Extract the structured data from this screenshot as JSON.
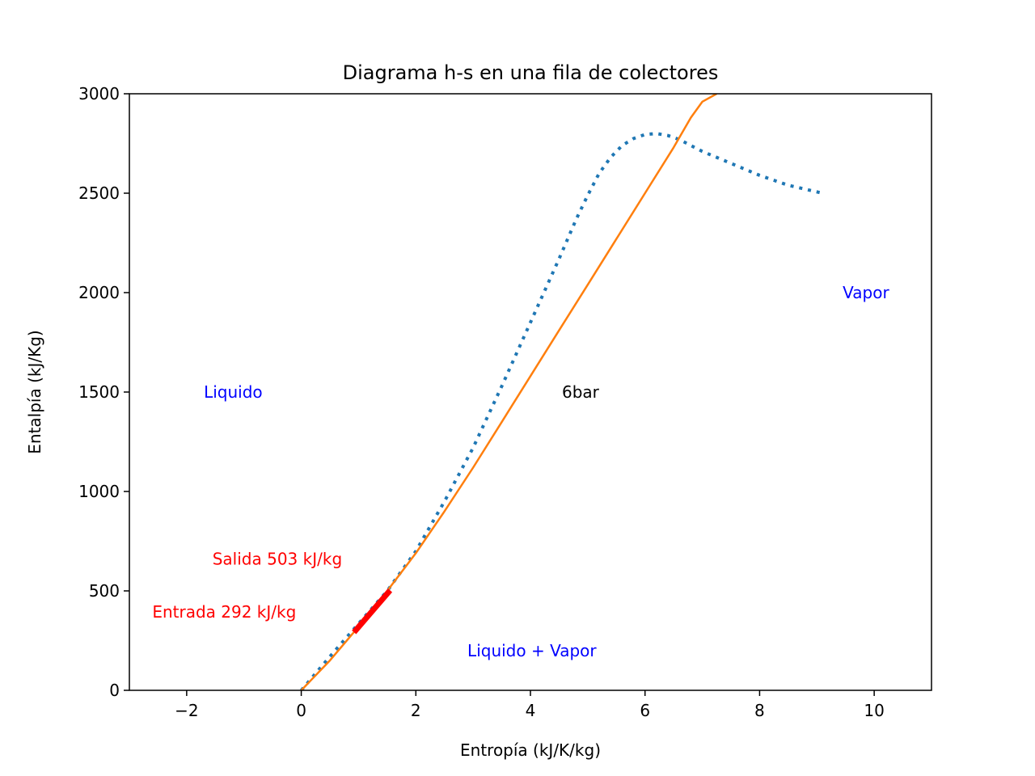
{
  "chart_data": {
    "type": "line",
    "title": "Diagrama h-s en una fila de colectores",
    "xlabel": "Entropía (kJ/K/kg)",
    "ylabel": "Entalpía (kJ/Kg)",
    "xlim": [
      -3,
      11
    ],
    "ylim": [
      0,
      3000
    ],
    "xticks": [
      -2,
      0,
      2,
      4,
      6,
      8,
      10
    ],
    "xtick_labels": [
      "−2",
      "0",
      "2",
      "4",
      "6",
      "8",
      "10"
    ],
    "yticks": [
      0,
      500,
      1000,
      1500,
      2000,
      2500,
      3000
    ],
    "ytick_labels": [
      "0",
      "500",
      "1000",
      "1500",
      "2000",
      "2500",
      "3000"
    ],
    "grid": false,
    "series": [
      {
        "style": "dotted",
        "color": "#1f77b4",
        "x": [
          0.0,
          0.5,
          1.0,
          1.5,
          2.0,
          2.5,
          3.0,
          3.5,
          4.0,
          4.5,
          4.8,
          5.0,
          5.2,
          5.4,
          5.6,
          5.8,
          6.0,
          6.2,
          6.4,
          6.6,
          6.8,
          7.0,
          7.5,
          8.0,
          8.5,
          9.1
        ],
        "y": [
          0,
          170,
          335,
          500,
          700,
          950,
          1220,
          1530,
          1850,
          2170,
          2370,
          2490,
          2600,
          2680,
          2740,
          2775,
          2795,
          2800,
          2790,
          2770,
          2740,
          2710,
          2650,
          2590,
          2540,
          2500
        ]
      },
      {
        "style": "solid",
        "color": "#ff7f0e",
        "x": [
          0.0,
          0.5,
          1.0,
          1.5,
          2.0,
          2.5,
          3.0,
          3.5,
          4.0,
          4.5,
          5.0,
          5.5,
          6.0,
          6.5,
          6.8,
          7.0,
          7.25
        ],
        "y": [
          0,
          150,
          320,
          500,
          690,
          900,
          1120,
          1350,
          1580,
          1810,
          2040,
          2270,
          2500,
          2730,
          2880,
          2960,
          3000
        ]
      },
      {
        "style": "solid-thick",
        "color": "#ff0000",
        "x": [
          0.92,
          1.55
        ],
        "y": [
          292,
          503
        ]
      }
    ],
    "annotations": [
      {
        "text": "Liquido",
        "x": -1.7,
        "y": 1500,
        "color": "#0000ff"
      },
      {
        "text": "6bar",
        "x": 4.55,
        "y": 1500,
        "color": "#000000"
      },
      {
        "text": "Vapor",
        "x": 9.45,
        "y": 2000,
        "color": "#0000ff"
      },
      {
        "text": "Liquido + Vapor",
        "x": 2.9,
        "y": 200,
        "color": "#0000ff"
      },
      {
        "text": "Salida 503 kJ/kg",
        "x": -1.55,
        "y": 660,
        "color": "#ff0000"
      },
      {
        "text": "Entrada 292 kJ/kg",
        "x": -2.6,
        "y": 395,
        "color": "#ff0000"
      }
    ]
  }
}
